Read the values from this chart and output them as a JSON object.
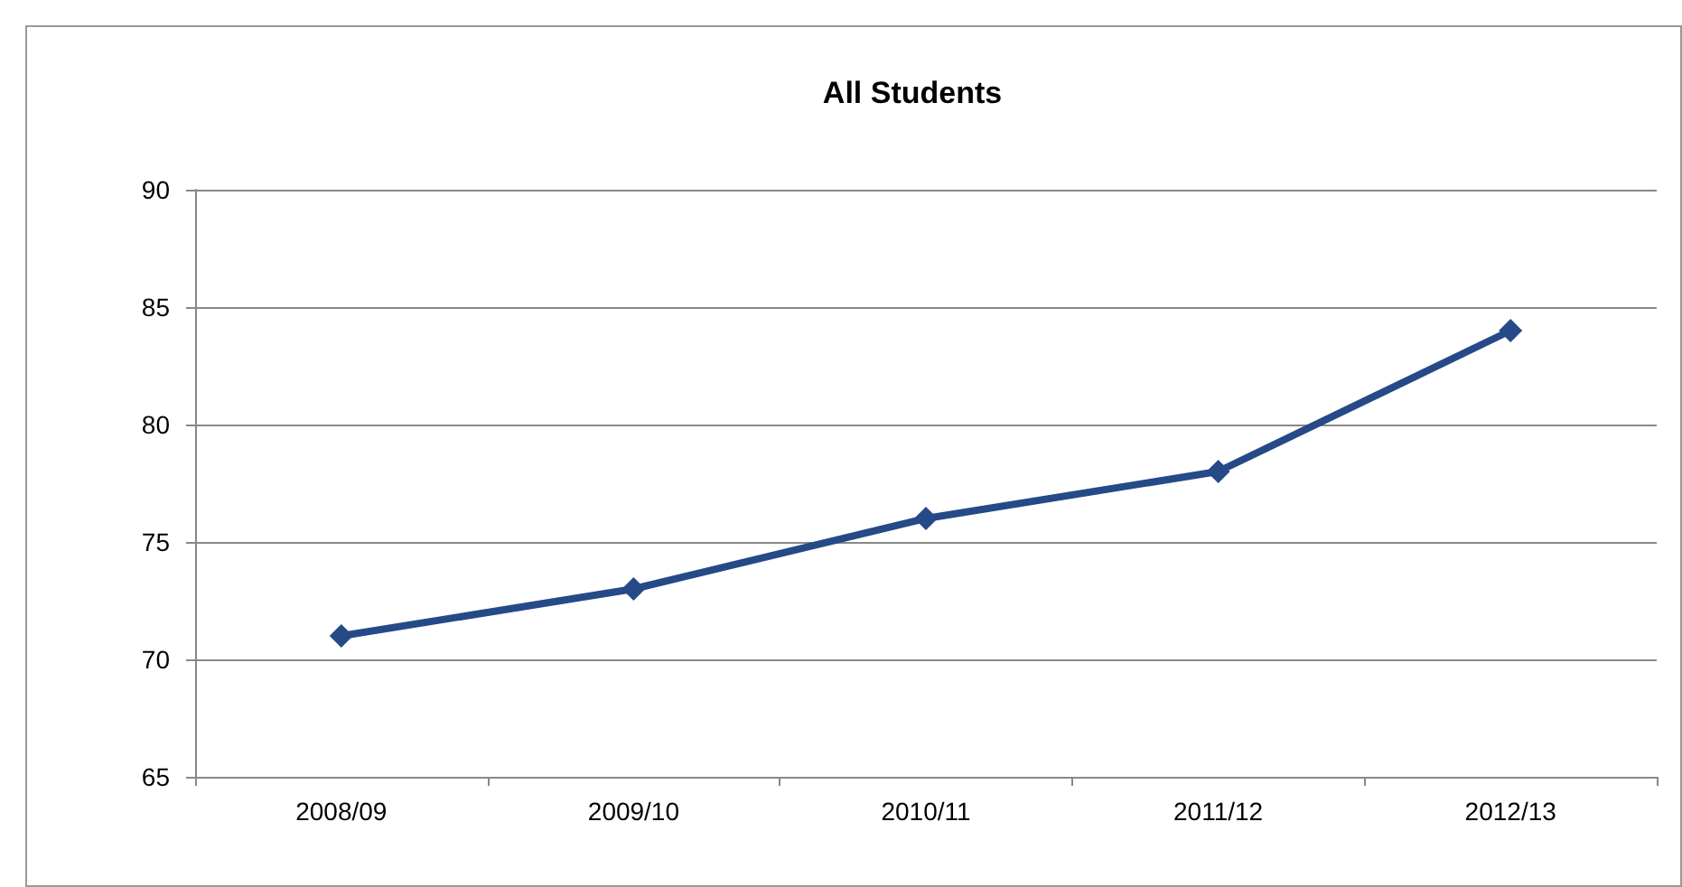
{
  "chart_data": {
    "type": "line",
    "title": "All Students",
    "categories": [
      "2008/09",
      "2009/10",
      "2010/11",
      "2011/12",
      "2012/13"
    ],
    "series": [
      {
        "color": "#254a87",
        "values": [
          71,
          73,
          76,
          78,
          84
        ]
      }
    ],
    "ylim": [
      65,
      90
    ],
    "yticks": [
      65,
      70,
      75,
      80,
      85,
      90
    ],
    "grid": "y",
    "marker": "diamond",
    "line_style": "solid"
  }
}
